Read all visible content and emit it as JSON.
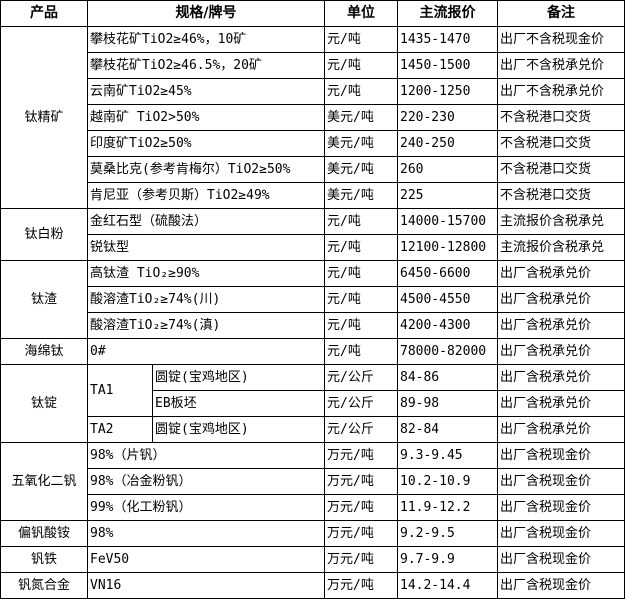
{
  "headers": [
    "产品",
    "规格/牌号",
    "单位",
    "主流报价",
    "备注"
  ],
  "groups": [
    {
      "product": "钛精矿",
      "rows": [
        {
          "spec": "攀枝花矿TiO2≥46%，10矿",
          "unit": "元/吨",
          "price": "1435-1470",
          "note": "出厂不含税现金价"
        },
        {
          "spec": "攀枝花矿TiO2≥46.5%，20矿",
          "unit": "元/吨",
          "price": "1450-1500",
          "note": "出厂不含税承兑价"
        },
        {
          "spec": "云南矿TiO2≥45%",
          "unit": "元/吨",
          "price": "1200-1250",
          "note": "出厂不含税承兑价"
        },
        {
          "spec": "越南矿 TiO2>50%",
          "unit": "美元/吨",
          "price": "220-230",
          "note": "不含税港口交货"
        },
        {
          "spec": "印度矿TiO2≥50%",
          "unit": "美元/吨",
          "price": "240-250",
          "note": "不含税港口交货"
        },
        {
          "spec": "莫桑比克(参考肯梅尔）TiO2≥50%",
          "unit": "美元/吨",
          "price": "260",
          "note": "不含税港口交货"
        },
        {
          "spec": "肯尼亚（参考贝斯）TiO2≥49%",
          "unit": "美元/吨",
          "price": "225",
          "note": "不含税港口交货"
        }
      ]
    },
    {
      "product": "钛白粉",
      "rows": [
        {
          "spec": "金红石型（硫酸法）",
          "unit": "元/吨",
          "price": "14000-15700",
          "note": "主流报价含税承兑"
        },
        {
          "spec": "锐钛型",
          "unit": "元/吨",
          "price": "12100-12800",
          "note": "主流报价含税承兑"
        }
      ]
    },
    {
      "product": "钛渣",
      "rows": [
        {
          "spec": "高钛渣 TiO₂≥90%",
          "unit": "元/吨",
          "price": "6450-6600",
          "note": "出厂含税承兑价"
        },
        {
          "spec": "酸溶渣TiO₂≥74%(川)",
          "unit": "元/吨",
          "price": "4500-4550",
          "note": "出厂含税承兑价"
        },
        {
          "spec": "酸溶渣TiO₂≥74%(滇)",
          "unit": "元/吨",
          "price": "4200-4300",
          "note": "出厂含税承兑价"
        }
      ]
    },
    {
      "product": "海绵钛",
      "rows": [
        {
          "spec": "0#",
          "unit": "元/吨",
          "price": "78000-82000",
          "note": "出厂含税承兑价"
        }
      ]
    },
    {
      "product": "钛锭",
      "rows": [
        {
          "grade": "TA1",
          "grade_span": 2,
          "spec": "圆锭(宝鸡地区)",
          "unit": "元/公斤",
          "price": "84-86",
          "note": "出厂含税承兑价"
        },
        {
          "spec": "EB板坯",
          "unit": "元/公斤",
          "price": "89-98",
          "note": "出厂含税承兑价"
        },
        {
          "grade": "TA2",
          "grade_span": 1,
          "spec": "圆锭(宝鸡地区)",
          "unit": "元/公斤",
          "price": "82-84",
          "note": "出厂含税承兑价"
        }
      ]
    },
    {
      "product": "五氧化二钒",
      "rows": [
        {
          "spec": "98%（片钒）",
          "unit": "万元/吨",
          "price": "9.3-9.45",
          "note": "出厂含税现金价"
        },
        {
          "spec": "98%（冶金粉钒）",
          "unit": "万元/吨",
          "price": "10.2-10.9",
          "note": "出厂含税现金价"
        },
        {
          "spec": "99%（化工粉钒）",
          "unit": "万元/吨",
          "price": "11.9-12.2",
          "note": "出厂含税现金价"
        }
      ]
    },
    {
      "product": "偏钒酸铵",
      "rows": [
        {
          "spec": "98%",
          "unit": "万元/吨",
          "price": "9.2-9.5",
          "note": "出厂含税现金价"
        }
      ]
    },
    {
      "product": "钒铁",
      "rows": [
        {
          "spec": "FeV50",
          "unit": "万元/吨",
          "price": "9.7-9.9",
          "note": "出厂含税现金价"
        }
      ]
    },
    {
      "product": "钒氮合金",
      "rows": [
        {
          "spec": "VN16",
          "unit": "万元/吨",
          "price": "14.2-14.4",
          "note": "出厂含税现金价"
        }
      ]
    }
  ]
}
